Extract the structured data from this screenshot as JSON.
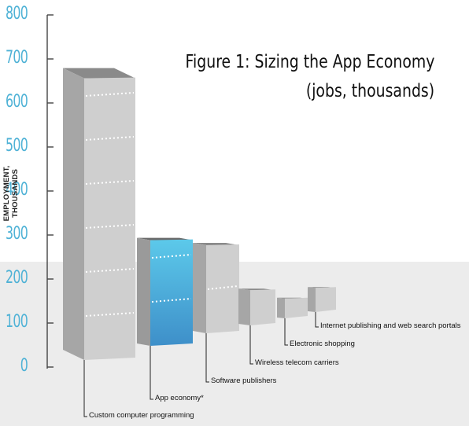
{
  "chart_data": {
    "type": "bar",
    "title": "Figure 1: Sizing the App Economy",
    "subtitle": "(jobs, thousands)",
    "ylabel": "EMPLOYMENT, THOUSANDS",
    "ylim": [
      0,
      800
    ],
    "yticks": [
      "0",
      "100",
      "200",
      "300",
      "400",
      "500",
      "600",
      "700",
      "800"
    ],
    "categories": [
      "Custom computer programming",
      "App economy*",
      "Software publishers",
      "Wireless telecom carriers",
      "Electronic shopping",
      "Internet publishing and web search portals"
    ],
    "values": [
      640,
      240,
      200,
      80,
      45,
      55
    ],
    "highlight_index": 1,
    "colors": {
      "bar": "#cfcfcf",
      "highlight": "#4fb8e0",
      "axis": "#444444",
      "tick_text": "#4fb2d6"
    }
  }
}
